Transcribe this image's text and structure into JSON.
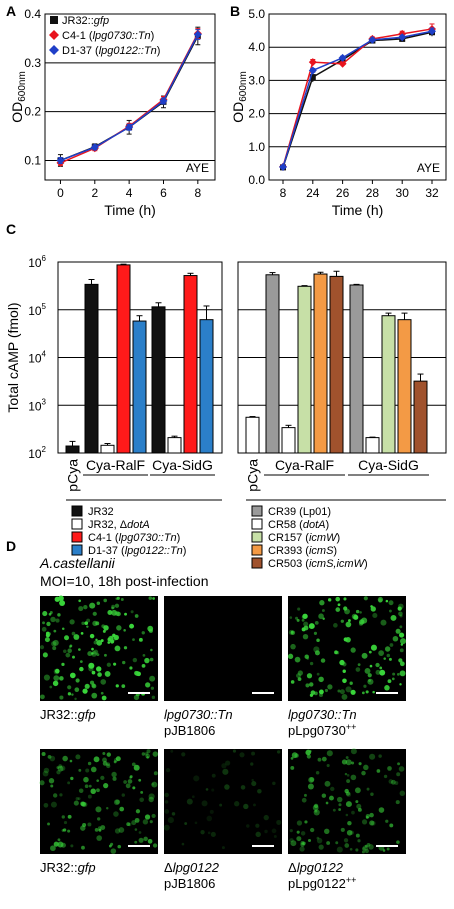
{
  "panels": {
    "A": "A",
    "B": "B",
    "C": "C",
    "D": "D"
  },
  "colors": {
    "black": "#111111",
    "red": "#e8141e",
    "blue": "#1f3fc8",
    "bar_black": "#111111",
    "bar_white": "#ffffff",
    "bar_red": "#ff1a1a",
    "bar_blue": "#2b7fc9",
    "bar_grey": "#9a9a9a",
    "bar_lightgreen": "#c7e0a7",
    "bar_orange": "#f39a45",
    "bar_brown": "#a0522d",
    "fluor": "#39d43a"
  },
  "chart_data": [
    {
      "type": "line",
      "panel": "A",
      "xlabel": "Time (h)",
      "ylabel": "OD600nm",
      "annotation": "AYE",
      "x": [
        0,
        2,
        4,
        6,
        8
      ],
      "xlim": [
        -0.9,
        9
      ],
      "ylim": [
        0.06,
        0.4
      ],
      "yticks": [
        0.1,
        0.2,
        0.3,
        0.4
      ],
      "yticklabels": [
        "0.1",
        "0.2",
        "0.3",
        "0.4"
      ],
      "xticklabels": [
        "0",
        "2",
        "4",
        "6",
        "8"
      ],
      "series": [
        {
          "name": "JR32::gfp",
          "marker": "square",
          "values": [
            0.1,
            0.128,
            0.168,
            0.22,
            0.355
          ],
          "err": [
            0.012,
            0.006,
            0.014,
            0.012,
            0.018
          ]
        },
        {
          "name": "C4-1 (lpg0730::Tn)",
          "marker": "diamond",
          "values": [
            0.095,
            0.125,
            0.17,
            0.225,
            0.36
          ],
          "err": [
            0.005,
            0.005,
            0.006,
            0.006,
            0.01
          ]
        },
        {
          "name": "D1-37 (lpg0122::Tn)",
          "marker": "diamond",
          "values": [
            0.1,
            0.127,
            0.168,
            0.222,
            0.358
          ],
          "err": [
            0.006,
            0.005,
            0.006,
            0.006,
            0.01
          ]
        }
      ],
      "legend": [
        {
          "prefix": "JR32::",
          "italic": "gfp",
          "suffix": ""
        },
        {
          "prefix": "C4-1 (",
          "italic": "lpg0730::Tn",
          "suffix": ")"
        },
        {
          "prefix": "D1-37 (",
          "italic": "lpg0122::Tn",
          "suffix": ")"
        }
      ]
    },
    {
      "type": "line",
      "panel": "B",
      "xlabel": "Time (h)",
      "ylabel": "OD600nm",
      "annotation": "AYE",
      "x": [
        8,
        24,
        26,
        28,
        30,
        32
      ],
      "xticklabels": [
        "8",
        "24",
        "26",
        "28",
        "30",
        "32"
      ],
      "ylim": [
        0,
        5
      ],
      "yticks": [
        0,
        1,
        2,
        3,
        4,
        5
      ],
      "yticklabels": [
        "0.0",
        "1.0",
        "2.0",
        "3.0",
        "4.0",
        "5.0"
      ],
      "series": [
        {
          "name": "JR32::gfp",
          "values": [
            0.38,
            3.1,
            3.62,
            4.2,
            4.25,
            4.45
          ],
          "err": [
            0.05,
            0.15,
            0.08,
            0.06,
            0.08,
            0.12
          ]
        },
        {
          "name": "C4-1 (lpg0730::Tn)",
          "values": [
            0.4,
            3.55,
            3.5,
            4.25,
            4.4,
            4.55
          ],
          "err": [
            0.04,
            0.08,
            0.06,
            0.06,
            0.08,
            0.15
          ]
        },
        {
          "name": "D1-37 (lpg0122::Tn)",
          "values": [
            0.39,
            3.3,
            3.68,
            4.22,
            4.3,
            4.48
          ],
          "err": [
            0.04,
            0.06,
            0.05,
            0.05,
            0.06,
            0.1
          ]
        }
      ]
    },
    {
      "type": "bar",
      "panel": "C-left",
      "ylabel": "Total cAMP (fmol)",
      "ylog": true,
      "ylim_exp": [
        2,
        6
      ],
      "yticklabels": [
        "10",
        "10",
        "10",
        "10",
        "10"
      ],
      "yticksup": [
        "2",
        "3",
        "4",
        "5",
        "6"
      ],
      "groups": [
        "pCya",
        "Cya-RalF",
        "Cya-SidG"
      ],
      "bars": [
        {
          "group": 0,
          "color": "bar_black",
          "value": 140,
          "errhi": 175,
          "errlo": 115
        },
        {
          "group": 1,
          "color": "bar_black",
          "value": 340000,
          "errhi": 430000
        },
        {
          "group": 1,
          "color": "bar_white",
          "value": 145,
          "errhi": 158
        },
        {
          "group": 1,
          "color": "bar_red",
          "value": 870000,
          "errhi": 900000
        },
        {
          "group": 1,
          "color": "bar_blue",
          "value": 58000,
          "errhi": 75000
        },
        {
          "group": 2,
          "color": "bar_black",
          "value": 115000,
          "errhi": 140000
        },
        {
          "group": 2,
          "color": "bar_white",
          "value": 210,
          "errhi": 225
        },
        {
          "group": 2,
          "color": "bar_red",
          "value": 520000,
          "errhi": 580000
        },
        {
          "group": 2,
          "color": "bar_blue",
          "value": 62000,
          "errhi": 120000
        }
      ],
      "legend": [
        {
          "color": "bar_black",
          "prefix": "JR32",
          "italic": "",
          "suffix": ""
        },
        {
          "color": "bar_white",
          "prefix": "JR32, Δ",
          "italic": "dotA",
          "suffix": ""
        },
        {
          "color": "bar_red",
          "prefix": "C4-1 (",
          "italic": "lpg0730::Tn",
          "suffix": ")"
        },
        {
          "color": "bar_blue",
          "prefix": "D1-37 (",
          "italic": "lpg0122::Tn",
          "suffix": ")"
        }
      ]
    },
    {
      "type": "bar",
      "panel": "C-right",
      "ylog": true,
      "groups": [
        "pCya",
        "Cya-RalF",
        "Cya-SidG"
      ],
      "bars": [
        {
          "group": 0,
          "color": "bar_white",
          "value": 560,
          "errhi": 580
        },
        {
          "group": 1,
          "color": "bar_grey",
          "value": 540000,
          "errhi": 600000
        },
        {
          "group": 1,
          "color": "bar_white",
          "value": 340,
          "errhi": 380
        },
        {
          "group": 1,
          "color": "bar_lightgreen",
          "value": 310000,
          "errhi": 320000
        },
        {
          "group": 1,
          "color": "bar_orange",
          "value": 560000,
          "errhi": 610000
        },
        {
          "group": 1,
          "color": "bar_brown",
          "value": 500000,
          "errhi": 640000
        },
        {
          "group": 2,
          "color": "bar_grey",
          "value": 330000,
          "errhi": 340000
        },
        {
          "group": 2,
          "color": "bar_white",
          "value": 210,
          "errhi": 215
        },
        {
          "group": 2,
          "color": "bar_lightgreen",
          "value": 75000,
          "errhi": 85000
        },
        {
          "group": 2,
          "color": "bar_orange",
          "value": 62000,
          "errhi": 85000
        },
        {
          "group": 2,
          "color": "bar_brown",
          "value": 3200,
          "errhi": 4500
        }
      ],
      "legend": [
        {
          "color": "bar_grey",
          "prefix": "CR39 (Lp01)",
          "italic": "",
          "suffix": ""
        },
        {
          "color": "bar_white",
          "prefix": "CR58 (",
          "italic": "dotA",
          "suffix": ")"
        },
        {
          "color": "bar_lightgreen",
          "prefix": "CR157 (",
          "italic": "icmW",
          "suffix": ")"
        },
        {
          "color": "bar_orange",
          "prefix": "CR393 (",
          "italic": "icmS",
          "suffix": ")"
        },
        {
          "color": "bar_brown",
          "prefix": "CR503 (",
          "italic": "icmS,icmW",
          "suffix": ")"
        }
      ]
    }
  ],
  "panelD": {
    "title": "A.castellanii",
    "subtitle": "MOI=10, 18h post-infection",
    "images": [
      {
        "density": 0.9,
        "intensity": 1.0,
        "caption1_prefix": "JR32::",
        "caption1_italic": "gfp",
        "caption1_suffix": "",
        "caption2_prefix": "",
        "caption2_italic": "",
        "caption2_suffix": ""
      },
      {
        "density": 0.0,
        "intensity": 0.0,
        "caption1_prefix": "",
        "caption1_italic": "lpg0730::Tn",
        "caption1_suffix": "",
        "caption2_prefix": "pJB1806",
        "caption2_italic": "",
        "caption2_suffix": ""
      },
      {
        "density": 0.8,
        "intensity": 0.95,
        "caption1_prefix": "",
        "caption1_italic": "lpg0730::Tn",
        "caption1_suffix": "",
        "caption2_prefix": "pLpg0730",
        "caption2_italic": "",
        "caption2_suffix": "++"
      },
      {
        "density": 0.75,
        "intensity": 0.7,
        "caption1_prefix": "JR32::",
        "caption1_italic": "gfp",
        "caption1_suffix": "",
        "caption2_prefix": "",
        "caption2_italic": "",
        "caption2_suffix": ""
      },
      {
        "density": 0.3,
        "intensity": 0.25,
        "caption1_prefix": "Δ",
        "caption1_italic": "lpg0122",
        "caption1_suffix": "",
        "caption2_prefix": "pJB1806",
        "caption2_italic": "",
        "caption2_suffix": ""
      },
      {
        "density": 0.7,
        "intensity": 0.6,
        "caption1_prefix": "Δ",
        "caption1_italic": "lpg0122",
        "caption1_suffix": "",
        "caption2_prefix": "pLpg0122",
        "caption2_italic": "",
        "caption2_suffix": "++"
      }
    ]
  }
}
